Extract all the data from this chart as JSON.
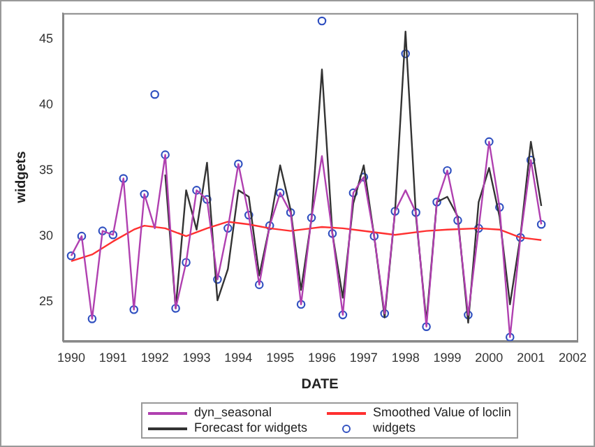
{
  "chart_data": {
    "type": "line",
    "xlabel": "DATE",
    "ylabel": "widgets",
    "xlim": [
      1989.8,
      2002.1
    ],
    "xticks": [
      1990,
      1991,
      1992,
      1993,
      1994,
      1995,
      1996,
      1997,
      1998,
      1999,
      2000,
      2001,
      2002
    ],
    "ylim": [
      22,
      47
    ],
    "yticks": [
      25,
      30,
      35,
      40,
      45
    ],
    "grid": false,
    "legend": "bottom",
    "series": [
      {
        "name": "dyn_seasonal",
        "marker": "none",
        "color": "#b040b0",
        "x": [
          1990,
          1990.25,
          1990.5,
          1990.75,
          1991,
          1991.25,
          1991.5,
          1991.75,
          1992,
          1992.25,
          1992.5,
          1992.75,
          1993,
          1993.25,
          1993.5,
          1993.75,
          1994,
          1994.25,
          1994.5,
          1994.75,
          1995,
          1995.25,
          1995.5,
          1995.75,
          1996,
          1996.25,
          1996.5,
          1996.75,
          1997,
          1997.25,
          1997.5,
          1997.75,
          1998,
          1998.25,
          1998.5,
          1998.75,
          1999,
          1999.25,
          1999.5,
          1999.75,
          2000,
          2000.25,
          2000.5,
          2000.75,
          2001,
          2001.25
        ],
        "values": [
          28.5,
          30.0,
          23.7,
          30.4,
          30.1,
          34.4,
          24.4,
          33.2,
          30.6,
          36.2,
          24.5,
          28.0,
          33.5,
          32.8,
          26.7,
          30.6,
          35.5,
          31.6,
          26.3,
          30.8,
          33.3,
          31.8,
          24.8,
          31.4,
          36.1,
          30.2,
          24.0,
          33.3,
          34.5,
          30.0,
          24.1,
          31.9,
          33.5,
          31.8,
          23.1,
          32.6,
          35.0,
          31.2,
          24.0,
          30.6,
          37.2,
          32.2,
          22.3,
          29.9,
          35.8,
          30.9
        ]
      },
      {
        "name": "Smoothed Value of loclin",
        "marker": "none",
        "color": "#ff3030",
        "x": [
          1990,
          1990.5,
          1991,
          1991.5,
          1991.75,
          1992.25,
          1992.75,
          1993.25,
          1993.75,
          1994.25,
          1994.75,
          1995.25,
          1995.75,
          1996,
          1996.5,
          1997.25,
          1997.75,
          1998.5,
          1999,
          1999.75,
          2000.25,
          2000.75,
          2001.25
        ],
        "values": [
          28.1,
          28.6,
          29.6,
          30.5,
          30.8,
          30.6,
          30.0,
          30.6,
          31.1,
          30.9,
          30.6,
          30.4,
          30.6,
          30.7,
          30.6,
          30.3,
          30.1,
          30.4,
          30.5,
          30.6,
          30.5,
          29.9,
          29.7
        ]
      },
      {
        "name": "Forecast for widgets",
        "marker": "none",
        "color": "#333333",
        "x": [
          1992.25,
          1992.5,
          1992.75,
          1993,
          1993.25,
          1993.5,
          1993.75,
          1994,
          1994.25,
          1994.5,
          1994.75,
          1995,
          1995.25,
          1995.5,
          1995.75,
          1996,
          1996.25,
          1996.5,
          1996.75,
          1997,
          1997.25,
          1997.5,
          1997.75,
          1998,
          1998.25,
          1998.5,
          1998.75,
          1999,
          1999.25,
          1999.5,
          1999.75,
          2000,
          2000.25,
          2000.5,
          2000.75,
          2001,
          2001.25
        ],
        "values": [
          34.7,
          24.5,
          33.5,
          30.5,
          35.6,
          25.1,
          27.5,
          33.5,
          33.0,
          27.0,
          30.8,
          35.4,
          32.0,
          25.9,
          31.3,
          42.7,
          30.2,
          25.3,
          32.5,
          35.4,
          30.0,
          23.8,
          31.9,
          45.6,
          31.5,
          23.5,
          32.6,
          33.0,
          31.5,
          23.4,
          32.6,
          35.2,
          31.5,
          24.8,
          30.0,
          37.2,
          32.3
        ]
      },
      {
        "name": "widgets",
        "type": "scatter",
        "marker": "circle",
        "color": "#3050c0",
        "x": [
          1990,
          1990.25,
          1990.5,
          1990.75,
          1991,
          1991.25,
          1991.5,
          1991.75,
          1992,
          1992.25,
          1992.5,
          1992.75,
          1993,
          1993.25,
          1993.5,
          1993.75,
          1994,
          1994.25,
          1994.5,
          1994.75,
          1995,
          1995.25,
          1995.5,
          1995.75,
          1996,
          1996.25,
          1996.5,
          1996.75,
          1997,
          1997.25,
          1997.5,
          1997.75,
          1998,
          1998.25,
          1998.5,
          1998.75,
          1999,
          1999.25,
          1999.5,
          1999.75,
          2000,
          2000.25,
          2000.5,
          2000.75,
          2001,
          2001.25
        ],
        "values": [
          28.5,
          30.0,
          23.7,
          30.4,
          30.1,
          34.4,
          24.4,
          33.2,
          40.8,
          36.2,
          24.5,
          28.0,
          33.5,
          32.8,
          26.7,
          30.6,
          35.5,
          31.6,
          26.3,
          30.8,
          33.3,
          31.8,
          24.8,
          31.4,
          46.4,
          30.2,
          24.0,
          33.3,
          34.5,
          30.0,
          24.1,
          31.9,
          43.9,
          31.8,
          23.1,
          32.6,
          35.0,
          31.2,
          24.0,
          30.6,
          37.2,
          32.2,
          22.3,
          29.9,
          35.8,
          30.9
        ]
      }
    ]
  }
}
